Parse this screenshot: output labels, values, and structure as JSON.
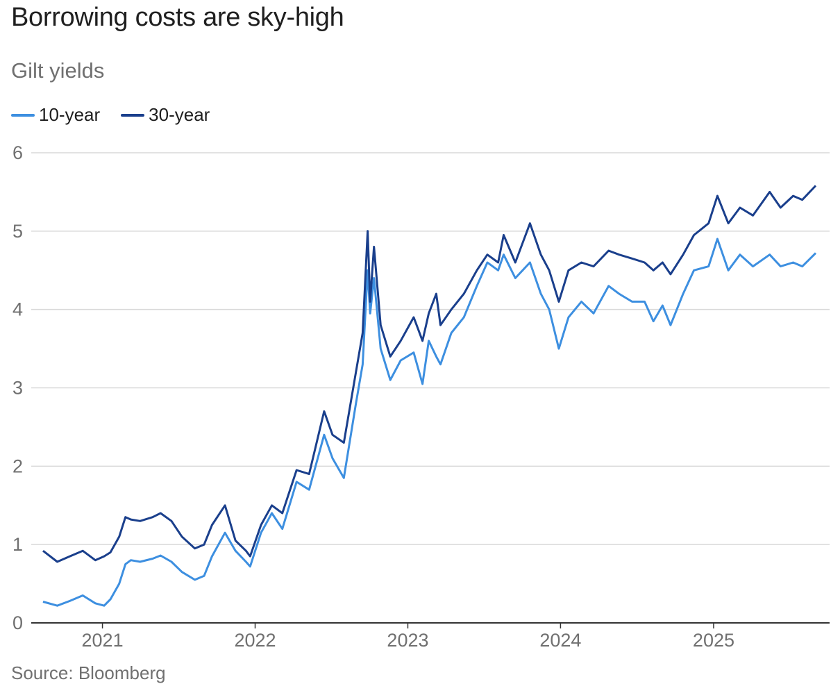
{
  "chart_data": {
    "type": "line",
    "title": "Borrowing costs are sky-high",
    "subtitle": "Gilt yields",
    "source": "Source: Bloomberg",
    "x_start": "2020-08",
    "x_end": "2025-09",
    "xlim": [
      "2020-08-12",
      "2025-09-02"
    ],
    "ylim": [
      0,
      6
    ],
    "y_ticks": [
      "0",
      "1",
      "2",
      "3",
      "4",
      "5",
      "6"
    ],
    "x_ticks": [
      "2021",
      "2022",
      "2023",
      "2024",
      "2025"
    ],
    "x_tick_dates": [
      "2021-01-01",
      "2022-01-01",
      "2023-01-01",
      "2024-01-01",
      "2025-01-01"
    ],
    "grid": true,
    "legend_position": "top-left",
    "series": [
      {
        "name": "10-year",
        "color": "#3d8fe0",
        "points": [
          [
            "2020-08-12",
            0.27
          ],
          [
            "2020-09-15",
            0.22
          ],
          [
            "2020-10-15",
            0.28
          ],
          [
            "2020-11-15",
            0.35
          ],
          [
            "2020-12-15",
            0.25
          ],
          [
            "2021-01-05",
            0.22
          ],
          [
            "2021-01-20",
            0.3
          ],
          [
            "2021-02-10",
            0.5
          ],
          [
            "2021-02-25",
            0.75
          ],
          [
            "2021-03-10",
            0.8
          ],
          [
            "2021-04-01",
            0.78
          ],
          [
            "2021-05-01",
            0.82
          ],
          [
            "2021-05-20",
            0.86
          ],
          [
            "2021-06-15",
            0.78
          ],
          [
            "2021-07-10",
            0.65
          ],
          [
            "2021-08-10",
            0.55
          ],
          [
            "2021-09-01",
            0.6
          ],
          [
            "2021-09-20",
            0.85
          ],
          [
            "2021-10-21",
            1.15
          ],
          [
            "2021-11-15",
            0.92
          ],
          [
            "2021-12-10",
            0.78
          ],
          [
            "2021-12-20",
            0.72
          ],
          [
            "2022-01-15",
            1.15
          ],
          [
            "2022-02-10",
            1.4
          ],
          [
            "2022-03-07",
            1.2
          ],
          [
            "2022-04-10",
            1.8
          ],
          [
            "2022-05-10",
            1.7
          ],
          [
            "2022-06-15",
            2.4
          ],
          [
            "2022-07-05",
            2.1
          ],
          [
            "2022-08-01",
            1.85
          ],
          [
            "2022-08-30",
            2.8
          ],
          [
            "2022-09-15",
            3.3
          ],
          [
            "2022-09-27",
            4.5
          ],
          [
            "2022-10-03",
            3.95
          ],
          [
            "2022-10-12",
            4.4
          ],
          [
            "2022-10-28",
            3.5
          ],
          [
            "2022-11-20",
            3.1
          ],
          [
            "2022-12-15",
            3.35
          ],
          [
            "2023-01-15",
            3.45
          ],
          [
            "2023-02-05",
            3.05
          ],
          [
            "2023-02-20",
            3.6
          ],
          [
            "2023-03-10",
            3.4
          ],
          [
            "2023-03-20",
            3.3
          ],
          [
            "2023-04-15",
            3.7
          ],
          [
            "2023-05-15",
            3.9
          ],
          [
            "2023-06-15",
            4.3
          ],
          [
            "2023-07-10",
            4.6
          ],
          [
            "2023-08-05",
            4.5
          ],
          [
            "2023-08-18",
            4.7
          ],
          [
            "2023-09-15",
            4.4
          ],
          [
            "2023-10-20",
            4.6
          ],
          [
            "2023-11-15",
            4.2
          ],
          [
            "2023-12-05",
            4.0
          ],
          [
            "2023-12-28",
            3.5
          ],
          [
            "2024-01-20",
            3.9
          ],
          [
            "2024-02-20",
            4.1
          ],
          [
            "2024-03-20",
            3.95
          ],
          [
            "2024-04-25",
            4.3
          ],
          [
            "2024-05-20",
            4.2
          ],
          [
            "2024-06-20",
            4.1
          ],
          [
            "2024-07-20",
            4.1
          ],
          [
            "2024-08-10",
            3.85
          ],
          [
            "2024-09-01",
            4.05
          ],
          [
            "2024-09-20",
            3.8
          ],
          [
            "2024-10-20",
            4.2
          ],
          [
            "2024-11-15",
            4.5
          ],
          [
            "2024-12-20",
            4.55
          ],
          [
            "2025-01-10",
            4.9
          ],
          [
            "2025-02-05",
            4.5
          ],
          [
            "2025-03-05",
            4.7
          ],
          [
            "2025-04-05",
            4.55
          ],
          [
            "2025-05-15",
            4.7
          ],
          [
            "2025-06-10",
            4.55
          ],
          [
            "2025-07-10",
            4.6
          ],
          [
            "2025-08-01",
            4.55
          ],
          [
            "2025-09-02",
            4.72
          ]
        ]
      },
      {
        "name": "30-year",
        "color": "#1a3f8c",
        "points": [
          [
            "2020-08-12",
            0.92
          ],
          [
            "2020-09-15",
            0.78
          ],
          [
            "2020-10-15",
            0.85
          ],
          [
            "2020-11-15",
            0.92
          ],
          [
            "2020-12-15",
            0.8
          ],
          [
            "2021-01-05",
            0.85
          ],
          [
            "2021-01-20",
            0.9
          ],
          [
            "2021-02-10",
            1.1
          ],
          [
            "2021-02-25",
            1.35
          ],
          [
            "2021-03-10",
            1.32
          ],
          [
            "2021-04-01",
            1.3
          ],
          [
            "2021-05-01",
            1.35
          ],
          [
            "2021-05-20",
            1.4
          ],
          [
            "2021-06-15",
            1.3
          ],
          [
            "2021-07-10",
            1.1
          ],
          [
            "2021-08-10",
            0.95
          ],
          [
            "2021-09-01",
            1.0
          ],
          [
            "2021-09-20",
            1.25
          ],
          [
            "2021-10-21",
            1.5
          ],
          [
            "2021-11-15",
            1.05
          ],
          [
            "2021-12-10",
            0.92
          ],
          [
            "2021-12-20",
            0.85
          ],
          [
            "2022-01-15",
            1.25
          ],
          [
            "2022-02-10",
            1.5
          ],
          [
            "2022-03-07",
            1.4
          ],
          [
            "2022-04-10",
            1.95
          ],
          [
            "2022-05-10",
            1.9
          ],
          [
            "2022-06-15",
            2.7
          ],
          [
            "2022-07-05",
            2.4
          ],
          [
            "2022-08-01",
            2.3
          ],
          [
            "2022-08-30",
            3.2
          ],
          [
            "2022-09-15",
            3.7
          ],
          [
            "2022-09-27",
            5.0
          ],
          [
            "2022-10-03",
            4.1
          ],
          [
            "2022-10-12",
            4.8
          ],
          [
            "2022-10-28",
            3.8
          ],
          [
            "2022-11-20",
            3.4
          ],
          [
            "2022-12-15",
            3.6
          ],
          [
            "2023-01-15",
            3.9
          ],
          [
            "2023-02-05",
            3.6
          ],
          [
            "2023-02-20",
            3.95
          ],
          [
            "2023-03-10",
            4.2
          ],
          [
            "2023-03-20",
            3.8
          ],
          [
            "2023-04-15",
            4.0
          ],
          [
            "2023-05-15",
            4.2
          ],
          [
            "2023-06-15",
            4.5
          ],
          [
            "2023-07-10",
            4.7
          ],
          [
            "2023-08-05",
            4.6
          ],
          [
            "2023-08-18",
            4.95
          ],
          [
            "2023-09-15",
            4.6
          ],
          [
            "2023-10-20",
            5.1
          ],
          [
            "2023-11-15",
            4.7
          ],
          [
            "2023-12-05",
            4.5
          ],
          [
            "2023-12-28",
            4.1
          ],
          [
            "2024-01-20",
            4.5
          ],
          [
            "2024-02-20",
            4.6
          ],
          [
            "2024-03-20",
            4.55
          ],
          [
            "2024-04-25",
            4.75
          ],
          [
            "2024-05-20",
            4.7
          ],
          [
            "2024-06-20",
            4.65
          ],
          [
            "2024-07-20",
            4.6
          ],
          [
            "2024-08-10",
            4.5
          ],
          [
            "2024-09-01",
            4.6
          ],
          [
            "2024-09-20",
            4.45
          ],
          [
            "2024-10-20",
            4.7
          ],
          [
            "2024-11-15",
            4.95
          ],
          [
            "2024-12-20",
            5.1
          ],
          [
            "2025-01-10",
            5.45
          ],
          [
            "2025-02-05",
            5.1
          ],
          [
            "2025-03-05",
            5.3
          ],
          [
            "2025-04-05",
            5.2
          ],
          [
            "2025-05-15",
            5.5
          ],
          [
            "2025-06-10",
            5.3
          ],
          [
            "2025-07-10",
            5.45
          ],
          [
            "2025-08-01",
            5.4
          ],
          [
            "2025-09-02",
            5.58
          ]
        ]
      }
    ]
  }
}
